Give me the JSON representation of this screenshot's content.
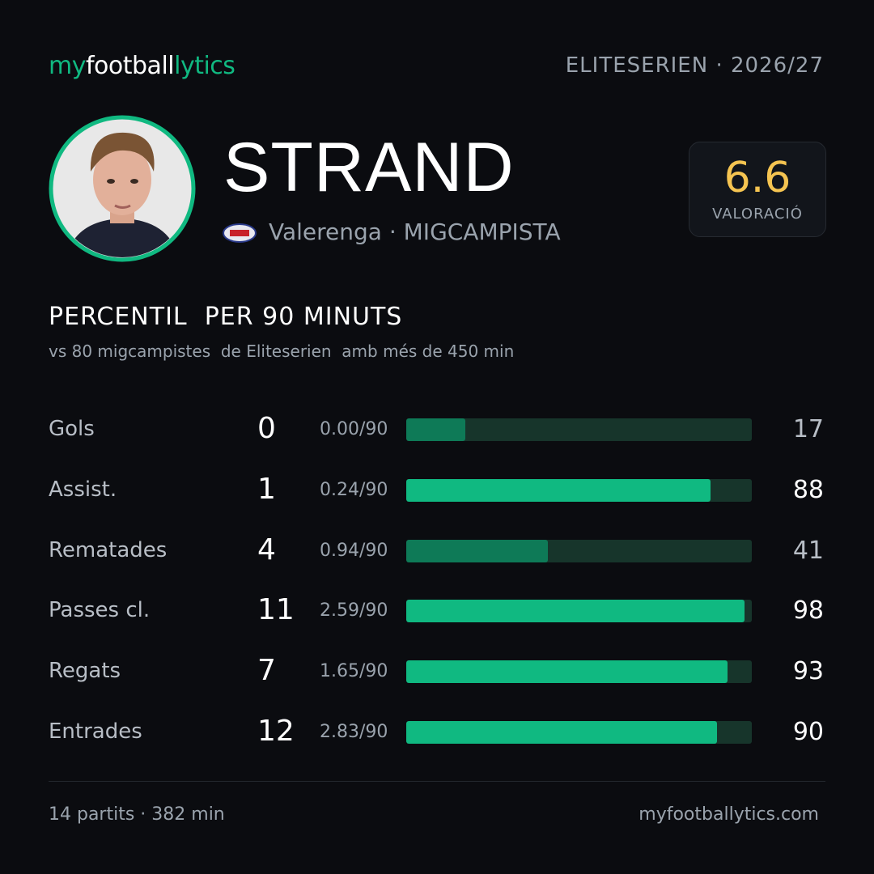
{
  "header": {
    "brand": [
      "my",
      "football",
      "lytics"
    ],
    "league": "ELITESERIEN · 2026/27"
  },
  "player": {
    "name": "STRAND",
    "club": "Valerenga · MIGCAMPISTA",
    "rating": "6.6",
    "rating_label": "VALORACIÓ"
  },
  "section": {
    "title": "PERCENTIL  PER 90 MINUTS",
    "subtitle": "vs 80 migcampistes  de Eliteserien  amb més de 450 min"
  },
  "percentile_range": [
    0,
    100
  ],
  "track_color": "#17352b",
  "rows": [
    {
      "label": "Gols",
      "total": "0",
      "per90": "0.00/90",
      "percentile": 17,
      "color": "#0e7a57",
      "text_color": "#b8bec6"
    },
    {
      "label": "Assist.",
      "total": "1",
      "per90": "0.24/90",
      "percentile": 88,
      "color": "#10b981",
      "text_color": "#ffffff"
    },
    {
      "label": "Rematades",
      "total": "4",
      "per90": "0.94/90",
      "percentile": 41,
      "color": "#0e7a57",
      "text_color": "#b8bec6"
    },
    {
      "label": "Passes cl.",
      "total": "11",
      "per90": "2.59/90",
      "percentile": 98,
      "color": "#10b981",
      "text_color": "#ffffff"
    },
    {
      "label": "Regats",
      "total": "7",
      "per90": "1.65/90",
      "percentile": 93,
      "color": "#10b981",
      "text_color": "#ffffff"
    },
    {
      "label": "Entrades",
      "total": "12",
      "per90": "2.83/90",
      "percentile": 90,
      "color": "#10b981",
      "text_color": "#ffffff"
    }
  ],
  "footer": {
    "stats": "14 partits · 382 min",
    "site": "myfootballytics.com"
  }
}
